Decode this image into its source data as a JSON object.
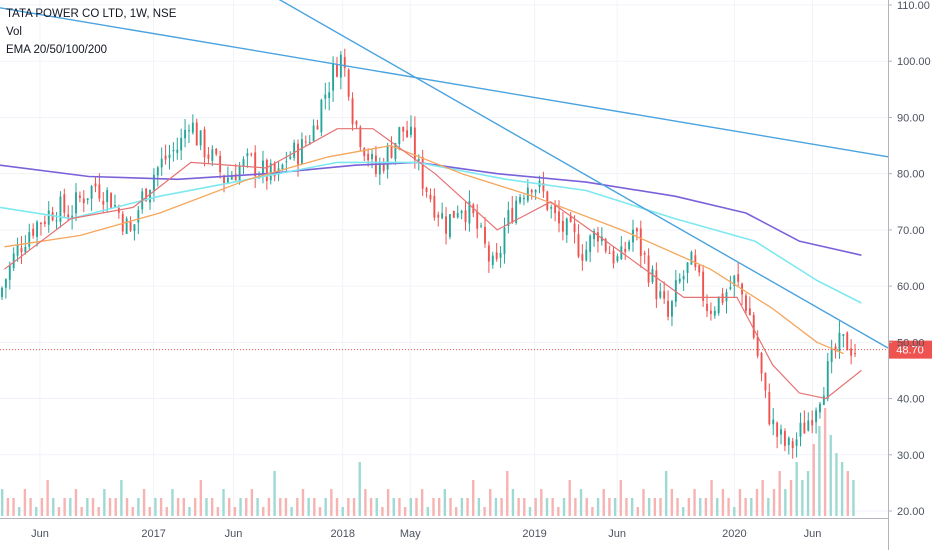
{
  "legend": {
    "symbol_line": "TATA POWER CO LTD, 1W, NSE",
    "volume_label": "Vol",
    "ema_label": "EMA 20/50/100/200"
  },
  "colors": {
    "up": "#26a69a",
    "down": "#ef5350",
    "ema20": "#e57373",
    "ema50": "#f5a65b",
    "ema100": "#7ee8f0",
    "ema200": "#7b61d9",
    "trendline": "#4aa3df",
    "last_price": "#ef5350"
  },
  "last_price_label": "48.70",
  "chart_data": {
    "type": "candlestick",
    "y_axis": {
      "min": 20,
      "max": 110,
      "ticks": [
        "20.00",
        "30.00",
        "40.00",
        "50.00",
        "60.00",
        "70.00",
        "80.00",
        "90.00",
        "100.00",
        "110.00"
      ]
    },
    "x_axis": {
      "labels": [
        {
          "text": "Jun",
          "t": 0.045
        },
        {
          "text": "2017",
          "t": 0.173
        },
        {
          "text": "Jun",
          "t": 0.263
        },
        {
          "text": "2018",
          "t": 0.386
        },
        {
          "text": "May",
          "t": 0.462
        },
        {
          "text": "2019",
          "t": 0.602
        },
        {
          "text": "Jun",
          "t": 0.695
        },
        {
          "text": "2020",
          "t": 0.827
        },
        {
          "text": "Jun",
          "t": 0.915
        }
      ]
    },
    "price_points": [
      [
        0.0,
        58
      ],
      [
        0.01,
        62
      ],
      [
        0.02,
        66
      ],
      [
        0.035,
        70
      ],
      [
        0.05,
        72
      ],
      [
        0.065,
        74
      ],
      [
        0.08,
        73
      ],
      [
        0.095,
        76
      ],
      [
        0.11,
        78
      ],
      [
        0.125,
        76
      ],
      [
        0.14,
        72
      ],
      [
        0.15,
        69
      ],
      [
        0.16,
        75
      ],
      [
        0.175,
        80
      ],
      [
        0.19,
        83
      ],
      [
        0.205,
        85
      ],
      [
        0.215,
        90
      ],
      [
        0.225,
        86
      ],
      [
        0.24,
        83
      ],
      [
        0.255,
        79
      ],
      [
        0.27,
        81
      ],
      [
        0.285,
        82
      ],
      [
        0.3,
        80
      ],
      [
        0.315,
        79
      ],
      [
        0.325,
        83
      ],
      [
        0.34,
        84
      ],
      [
        0.355,
        88
      ],
      [
        0.365,
        93
      ],
      [
        0.375,
        97
      ],
      [
        0.385,
        101
      ],
      [
        0.395,
        96
      ],
      [
        0.4,
        90
      ],
      [
        0.41,
        86
      ],
      [
        0.425,
        80
      ],
      [
        0.44,
        84
      ],
      [
        0.455,
        88
      ],
      [
        0.465,
        86
      ],
      [
        0.475,
        80
      ],
      [
        0.49,
        75
      ],
      [
        0.505,
        71
      ],
      [
        0.52,
        75
      ],
      [
        0.535,
        72
      ],
      [
        0.55,
        66
      ],
      [
        0.56,
        62
      ],
      [
        0.57,
        70
      ],
      [
        0.585,
        76
      ],
      [
        0.6,
        79
      ],
      [
        0.615,
        76
      ],
      [
        0.63,
        71
      ],
      [
        0.645,
        69
      ],
      [
        0.66,
        66
      ],
      [
        0.675,
        70
      ],
      [
        0.685,
        67
      ],
      [
        0.7,
        64
      ],
      [
        0.715,
        70
      ],
      [
        0.725,
        66
      ],
      [
        0.74,
        60
      ],
      [
        0.755,
        54
      ],
      [
        0.765,
        60
      ],
      [
        0.78,
        64
      ],
      [
        0.79,
        60
      ],
      [
        0.8,
        56
      ],
      [
        0.815,
        58
      ],
      [
        0.83,
        61
      ],
      [
        0.845,
        56
      ],
      [
        0.855,
        48
      ],
      [
        0.865,
        39
      ],
      [
        0.875,
        34
      ],
      [
        0.89,
        31
      ],
      [
        0.9,
        33
      ],
      [
        0.915,
        37
      ],
      [
        0.93,
        43
      ],
      [
        0.945,
        49
      ],
      [
        0.955,
        50
      ],
      [
        0.965,
        48.7
      ]
    ],
    "ema20_points": [
      [
        0.005,
        63
      ],
      [
        0.08,
        72
      ],
      [
        0.15,
        74
      ],
      [
        0.215,
        82
      ],
      [
        0.3,
        81
      ],
      [
        0.38,
        88
      ],
      [
        0.42,
        88
      ],
      [
        0.49,
        80
      ],
      [
        0.56,
        70
      ],
      [
        0.62,
        75
      ],
      [
        0.7,
        66
      ],
      [
        0.77,
        58
      ],
      [
        0.83,
        58
      ],
      [
        0.87,
        46
      ],
      [
        0.9,
        41
      ],
      [
        0.93,
        40
      ],
      [
        0.97,
        45
      ]
    ],
    "ema50_points": [
      [
        0.005,
        67
      ],
      [
        0.09,
        69
      ],
      [
        0.18,
        73
      ],
      [
        0.28,
        79
      ],
      [
        0.37,
        83
      ],
      [
        0.44,
        85
      ],
      [
        0.52,
        80
      ],
      [
        0.6,
        76
      ],
      [
        0.7,
        70
      ],
      [
        0.8,
        63
      ],
      [
        0.87,
        56
      ],
      [
        0.92,
        50
      ],
      [
        0.95,
        48
      ]
    ],
    "ema100_points": [
      [
        0.0,
        74
      ],
      [
        0.08,
        72
      ],
      [
        0.18,
        76
      ],
      [
        0.28,
        79
      ],
      [
        0.38,
        82
      ],
      [
        0.47,
        82
      ],
      [
        0.57,
        79
      ],
      [
        0.66,
        77
      ],
      [
        0.76,
        72
      ],
      [
        0.85,
        68
      ],
      [
        0.92,
        61
      ],
      [
        0.97,
        57
      ]
    ],
    "ema200_points": [
      [
        0.0,
        81.5
      ],
      [
        0.1,
        79.5
      ],
      [
        0.2,
        79
      ],
      [
        0.3,
        80
      ],
      [
        0.4,
        81.5
      ],
      [
        0.47,
        82
      ],
      [
        0.56,
        80
      ],
      [
        0.66,
        78.5
      ],
      [
        0.76,
        76
      ],
      [
        0.84,
        73
      ],
      [
        0.9,
        68
      ],
      [
        0.97,
        65.5
      ]
    ],
    "trendlines": [
      {
        "from": [
          0.0,
          109.5
        ],
        "to": [
          1.0,
          83
        ]
      },
      {
        "from": [
          0.27,
          115
        ],
        "to": [
          1.0,
          49
        ]
      }
    ],
    "volume_bars": [
      3,
      2,
      2,
      1,
      3,
      2,
      1,
      2,
      4,
      2,
      1,
      2,
      2,
      3,
      1,
      2,
      2,
      1,
      3,
      2,
      2,
      4,
      2,
      1,
      2,
      3,
      1,
      2,
      2,
      1,
      3,
      2,
      2,
      1,
      2,
      4,
      2,
      2,
      1,
      3,
      2,
      1,
      2,
      2,
      3,
      2,
      1,
      2,
      5,
      2,
      2,
      1,
      2,
      3,
      2,
      2,
      1,
      2,
      3,
      2,
      1,
      2,
      2,
      6,
      3,
      2,
      2,
      1,
      3,
      2,
      2,
      1,
      2,
      2,
      3,
      1,
      2,
      2,
      3,
      2,
      1,
      2,
      2,
      4,
      2,
      1,
      3,
      2,
      2,
      5,
      3,
      2,
      2,
      1,
      2,
      3,
      2,
      2,
      1,
      2,
      4,
      2,
      3,
      2,
      1,
      2,
      3,
      2,
      2,
      4,
      2,
      2,
      1,
      3,
      2,
      2,
      2,
      5,
      3,
      2,
      1,
      2,
      3,
      2,
      2,
      4,
      2,
      3,
      2,
      1,
      3,
      2,
      2,
      3,
      4,
      2,
      3,
      5,
      3,
      4,
      6,
      4,
      5,
      8,
      10,
      12,
      9,
      7,
      6,
      5,
      4
    ],
    "last_price": 48.7
  }
}
